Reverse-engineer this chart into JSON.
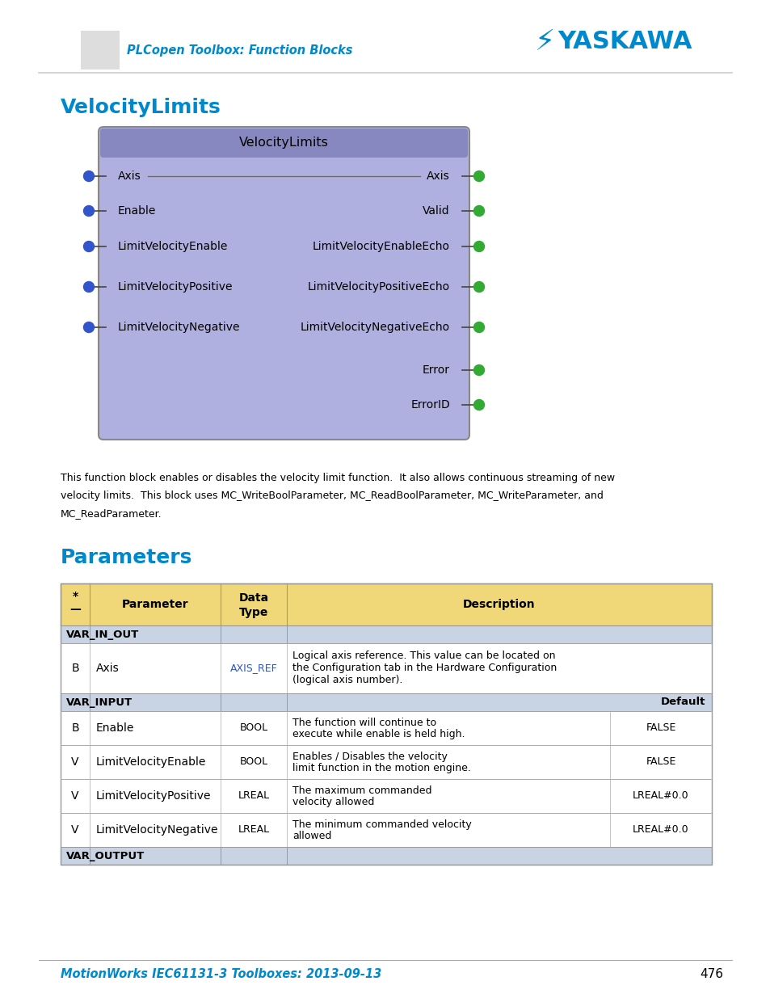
{
  "header_subtitle": "PLCopen Toolbox: Function Blocks",
  "section1_title": "VelocityLimits",
  "block_title": "VelocityLimits",
  "block_bg": "#b0b0e0",
  "block_header_bg": "#8888c0",
  "block_border": "#707090",
  "inputs": [
    "Axis",
    "Enable",
    "LimitVelocityEnable",
    "LimitVelocityPositive",
    "LimitVelocityNegative"
  ],
  "outputs": [
    "Axis",
    "Valid",
    "LimitVelocityEnableEcho",
    "LimitVelocityPositiveEcho",
    "LimitVelocityNegativeEcho",
    "Error",
    "ErrorID"
  ],
  "description_lines": [
    "This function block enables or disables the velocity limit function.  It also allows continuous streaming of new",
    "velocity limits.  This block uses MC_WriteBoolParameter, MC_ReadBoolParameter, MC_WriteParameter, and",
    "MC_ReadParameter."
  ],
  "section2_title": "Parameters",
  "table_header_bg": "#f0d878",
  "table_section_bg": "#c8d4e4",
  "table_row_bg": "#ffffff",
  "col_headers_line1": [
    "*",
    "Parameter",
    "Data",
    "Description"
  ],
  "col_headers_line2": [
    "_",
    "",
    "Type",
    ""
  ],
  "var_in_out_label": "VAR_IN_OUT",
  "var_input_label": "VAR_INPUT",
  "var_output_label": "VAR_OUTPUT",
  "default_label": "Default",
  "row_axis_type": "AXIS_REF",
  "row_axis_desc1": "Logical axis reference. This value can be located on",
  "row_axis_desc2": "the Configuration tab in the Hardware Configuration",
  "row_axis_desc3": "(logical axis number).",
  "rows_var_input": [
    {
      "dir": "B",
      "name": "Enable",
      "type": "BOOL",
      "desc1": "The function will continue to",
      "desc2": "execute while enable is held high.",
      "default": "FALSE"
    },
    {
      "dir": "V",
      "name": "LimitVelocityEnable",
      "type": "BOOL",
      "desc1": "Enables / Disables the velocity",
      "desc2": "limit function in the motion engine.",
      "default": "FALSE"
    },
    {
      "dir": "V",
      "name": "LimitVelocityPositive",
      "type": "LREAL",
      "desc1": "The maximum commanded",
      "desc2": "velocity allowed",
      "default": "LREAL#0.0"
    },
    {
      "dir": "V",
      "name": "LimitVelocityNegative",
      "type": "LREAL",
      "desc1": "The minimum commanded velocity",
      "desc2": "allowed",
      "default": "LREAL#0.0"
    }
  ],
  "footer_text": "MotionWorks IEC61131-3 Toolboxes: 2013-09-13",
  "page_number": "476",
  "cyan_color": "#0088cc",
  "blue_dot_color": "#3355cc",
  "green_dot_color": "#33aa33",
  "axis_ref_color": "#3355bb",
  "text_color": "#111111",
  "gray_line": "#aaaaaa"
}
